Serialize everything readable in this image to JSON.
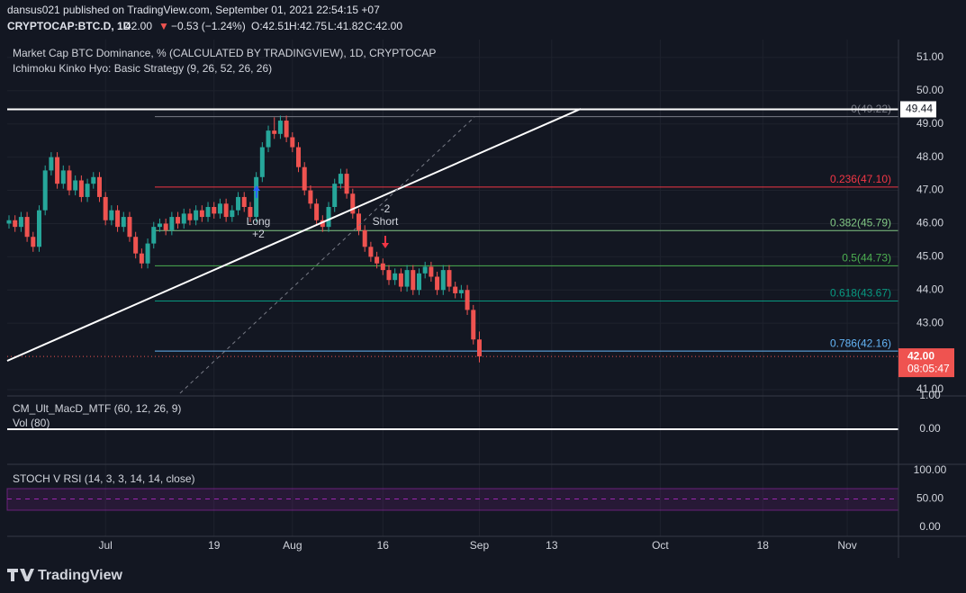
{
  "header": {
    "publisher": "dansus021 published on TradingView.com, September 01, 2021 22:54:15 +07",
    "symbol": "CRYPTOCAP:BTC.D, 1D",
    "last": "42.00",
    "arrow": "▼",
    "change": "−0.53 (−1.24%)",
    "open": "O:42.51",
    "high": "H:42.75",
    "low": "L:41.82",
    "close": "C:42.00"
  },
  "brand": "TradingView",
  "chart_data": [
    {
      "type": "candlestick",
      "title": "Market Cap BTC Dominance, % (CALCULATED BY TRADINGVIEW), 1D, CRYPTOCAP",
      "subtitle": "Ichimoku Kinko Hyo: Basic Strategy (9, 26, 52, 26, 26)",
      "up_color": "#26a69a",
      "down_color": "#ef5350",
      "grid": true,
      "ylim": [
        40.81,
        51.54
      ],
      "yticks": [
        {
          "value": 51,
          "label": "51.00"
        },
        {
          "value": 50,
          "label": "50.00"
        },
        {
          "value": 49,
          "label": "49.00"
        },
        {
          "value": 48,
          "label": "48.00"
        },
        {
          "value": 47,
          "label": "47.00"
        },
        {
          "value": 46,
          "label": "46.00"
        },
        {
          "value": 45,
          "label": "45.00"
        },
        {
          "value": 44,
          "label": "44.00"
        },
        {
          "value": 43,
          "label": "43.00"
        },
        {
          "value": 41,
          "label": "41.00"
        }
      ],
      "xlim": [
        0,
        147.5
      ],
      "xticks": [
        {
          "value": 16,
          "label": "Jul"
        },
        {
          "value": 34,
          "label": "19"
        },
        {
          "value": 47,
          "label": "Aug"
        },
        {
          "value": 62,
          "label": "16"
        },
        {
          "value": 78,
          "label": "Sep"
        },
        {
          "value": 90,
          "label": "13"
        },
        {
          "value": 108,
          "label": "Oct"
        },
        {
          "value": 125,
          "label": "18"
        },
        {
          "value": 139,
          "label": "Nov"
        }
      ],
      "candles": [
        [
          46.0,
          46.25,
          45.85,
          46.1
        ],
        [
          46.1,
          46.25,
          45.75,
          45.9
        ],
        [
          45.9,
          46.35,
          45.75,
          46.2
        ],
        [
          46.2,
          46.35,
          45.45,
          45.6
        ],
        [
          45.6,
          45.75,
          45.15,
          45.3
        ],
        [
          45.3,
          46.55,
          45.15,
          46.4
        ],
        [
          46.4,
          47.75,
          46.25,
          47.6
        ],
        [
          47.6,
          48.15,
          47.45,
          48.0
        ],
        [
          48.0,
          48.15,
          47.05,
          47.2
        ],
        [
          47.2,
          47.75,
          47.05,
          47.6
        ],
        [
          47.6,
          47.75,
          46.85,
          47.0
        ],
        [
          47.0,
          47.45,
          46.85,
          47.3
        ],
        [
          47.3,
          47.45,
          46.65,
          46.8
        ],
        [
          46.8,
          47.35,
          46.65,
          47.2
        ],
        [
          47.2,
          47.55,
          47.05,
          47.4
        ],
        [
          47.4,
          47.55,
          46.65,
          46.8
        ],
        [
          46.8,
          46.95,
          45.95,
          46.1
        ],
        [
          46.1,
          46.55,
          45.95,
          46.4
        ],
        [
          46.4,
          46.55,
          45.75,
          45.9
        ],
        [
          45.9,
          46.35,
          45.75,
          46.2
        ],
        [
          46.2,
          46.35,
          45.45,
          45.6
        ],
        [
          45.6,
          45.75,
          44.95,
          45.1
        ],
        [
          45.1,
          45.25,
          44.65,
          44.8
        ],
        [
          44.8,
          45.55,
          44.65,
          45.4
        ],
        [
          45.4,
          46.05,
          45.25,
          45.9
        ],
        [
          45.9,
          46.15,
          45.75,
          46.0
        ],
        [
          46.0,
          46.15,
          45.65,
          45.8
        ],
        [
          45.8,
          46.35,
          45.65,
          46.2
        ],
        [
          46.2,
          46.35,
          45.85,
          46.0
        ],
        [
          46.0,
          46.45,
          45.85,
          46.3
        ],
        [
          46.3,
          46.45,
          45.95,
          46.1
        ],
        [
          46.1,
          46.55,
          45.95,
          46.4
        ],
        [
          46.4,
          46.55,
          46.05,
          46.2
        ],
        [
          46.2,
          46.65,
          46.05,
          46.5
        ],
        [
          46.5,
          46.65,
          46.15,
          46.3
        ],
        [
          46.3,
          46.75,
          46.15,
          46.6
        ],
        [
          46.6,
          46.75,
          46.05,
          46.2
        ],
        [
          46.2,
          46.55,
          46.05,
          46.4
        ],
        [
          46.4,
          46.95,
          46.25,
          46.8
        ],
        [
          46.8,
          46.95,
          46.35,
          46.5
        ],
        [
          46.5,
          46.65,
          46.05,
          46.2
        ],
        [
          46.2,
          47.55,
          46.05,
          47.4
        ],
        [
          47.4,
          48.45,
          47.25,
          48.3
        ],
        [
          48.3,
          48.95,
          48.15,
          48.8
        ],
        [
          48.8,
          49.2,
          48.55,
          48.7
        ],
        [
          48.7,
          49.25,
          48.55,
          49.1
        ],
        [
          49.1,
          49.25,
          48.45,
          48.6
        ],
        [
          48.6,
          48.75,
          48.15,
          48.3
        ],
        [
          48.3,
          48.45,
          47.55,
          47.7
        ],
        [
          47.7,
          47.85,
          46.85,
          47.0
        ],
        [
          47.0,
          47.15,
          46.45,
          46.6
        ],
        [
          46.6,
          46.75,
          45.95,
          46.1
        ],
        [
          46.1,
          46.25,
          45.75,
          45.9
        ],
        [
          45.9,
          46.65,
          45.75,
          46.5
        ],
        [
          46.5,
          47.35,
          46.35,
          47.2
        ],
        [
          47.2,
          47.65,
          47.05,
          47.5
        ],
        [
          47.5,
          47.65,
          46.75,
          46.9
        ],
        [
          46.9,
          47.05,
          46.15,
          46.3
        ],
        [
          46.3,
          46.45,
          45.65,
          45.8
        ],
        [
          45.8,
          45.95,
          45.15,
          45.3
        ],
        [
          45.3,
          45.45,
          44.85,
          45.0
        ],
        [
          45.0,
          45.15,
          44.65,
          44.8
        ],
        [
          44.8,
          44.95,
          44.45,
          44.6
        ],
        [
          44.6,
          44.75,
          44.15,
          44.3
        ],
        [
          44.3,
          44.65,
          44.15,
          44.5
        ],
        [
          44.5,
          44.65,
          43.95,
          44.1
        ],
        [
          44.1,
          44.75,
          43.95,
          44.6
        ],
        [
          44.6,
          44.75,
          43.85,
          44.0
        ],
        [
          44.0,
          44.65,
          43.85,
          44.5
        ],
        [
          44.5,
          44.85,
          44.35,
          44.7
        ],
        [
          44.7,
          44.85,
          44.25,
          44.4
        ],
        [
          44.4,
          44.55,
          43.85,
          44.0
        ],
        [
          44.0,
          44.75,
          43.85,
          44.6
        ],
        [
          44.6,
          44.75,
          43.95,
          44.1
        ],
        [
          44.1,
          44.25,
          43.75,
          43.9
        ],
        [
          43.9,
          44.15,
          43.75,
          44.0
        ],
        [
          44.0,
          44.15,
          43.25,
          43.4
        ],
        [
          43.4,
          43.55,
          42.36,
          42.51
        ],
        [
          42.51,
          42.75,
          41.82,
          42.0
        ]
      ],
      "fib_levels": [
        {
          "value": 49.22,
          "label": "0(49.22)",
          "color": "#787b86"
        },
        {
          "value": 47.1,
          "label": "0.236(47.10)",
          "color": "#f23645"
        },
        {
          "value": 45.79,
          "label": "0.382(45.79)",
          "color": "#81c784"
        },
        {
          "value": 44.73,
          "label": "0.5(44.73)",
          "color": "#4caf50"
        },
        {
          "value": 43.67,
          "label": "0.618(43.67)",
          "color": "#089981"
        },
        {
          "value": 42.16,
          "label": "0.786(42.16)",
          "color": "#64b5f6"
        }
      ],
      "level": {
        "value": 49.44,
        "label": "49.44"
      },
      "last_price": {
        "value": 42.0,
        "label": "42.00"
      },
      "countdown": "08:05:47",
      "annotations": [
        "Long",
        "+2",
        "-2",
        "Short"
      ]
    },
    {
      "type": "macd",
      "title": "CM_Ult_MacD_MTF (60, 12, 26, 9)",
      "subtitle": "Vol (80)",
      "ylim": [
        -1.03,
        1.0
      ],
      "yticks": [
        {
          "value": 1,
          "label": "1.00"
        },
        {
          "value": 0,
          "label": "0.00"
        }
      ]
    },
    {
      "type": "stoch",
      "title": "STOCH V RSI (14, 3, 3, 14, 14, close)",
      "ylim": [
        -14.3,
        109.5
      ],
      "yticks": [
        {
          "value": 100,
          "label": "100.00"
        },
        {
          "value": 50,
          "label": "50.00"
        },
        {
          "value": 0,
          "label": "0.00"
        }
      ]
    }
  ]
}
